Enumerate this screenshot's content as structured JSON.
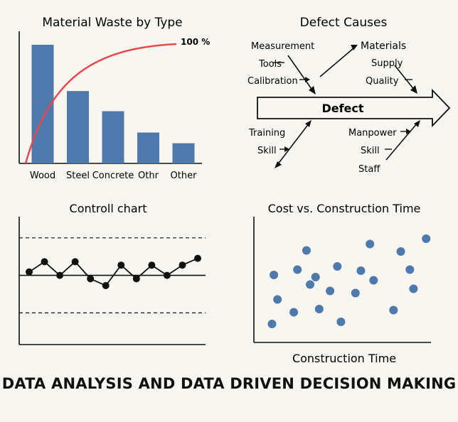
{
  "footer": {
    "title": "DATA ANALYSIS AND DATA DRIVEN DECISION MAKING"
  },
  "colors": {
    "bar": "#4e79ad",
    "pareto": "#e8474d",
    "dot": "#4e79ad",
    "line": "#111111"
  },
  "chart_data": [
    {
      "type": "bar",
      "title": "Material Waste by Type",
      "categories": [
        "Wood",
        "Steel",
        "Concrete",
        "Othr",
        "Other"
      ],
      "values": [
        100,
        61,
        44,
        26,
        17
      ],
      "cumulative_line_label": "100 %",
      "xlabel": "",
      "ylabel": ""
    },
    {
      "type": "diagram",
      "title": "Defect Causes",
      "head": "Defect",
      "branches": [
        {
          "items": [
            "Measurement",
            "Tools",
            "Calibration"
          ]
        },
        {
          "items": [
            "Materials",
            "Supply",
            "Quality"
          ]
        },
        {
          "items": [
            "Training",
            "Skill"
          ]
        },
        {
          "items": [
            "Manpower",
            "Skill",
            "Staff"
          ]
        }
      ]
    },
    {
      "type": "line",
      "title": "Controll chart",
      "values": [
        4,
        7,
        3,
        7,
        2,
        0,
        6,
        2,
        6,
        3,
        6,
        8
      ],
      "center_line": 3,
      "upper_limit": 14,
      "lower_limit": -8
    },
    {
      "type": "scatter",
      "title": "Cost vs. Construction Time",
      "xlabel": "Construction Time",
      "ylabel": "",
      "points": [
        [
          1.0,
          1.0
        ],
        [
          1.3,
          3.3
        ],
        [
          1.1,
          5.6
        ],
        [
          2.2,
          2.1
        ],
        [
          2.4,
          6.1
        ],
        [
          3.1,
          4.7
        ],
        [
          2.9,
          7.9
        ],
        [
          3.6,
          2.4
        ],
        [
          3.4,
          5.4
        ],
        [
          4.2,
          4.1
        ],
        [
          4.6,
          6.4
        ],
        [
          4.8,
          1.2
        ],
        [
          5.6,
          3.9
        ],
        [
          5.9,
          6.0
        ],
        [
          6.4,
          8.5
        ],
        [
          6.6,
          5.1
        ],
        [
          7.7,
          2.3
        ],
        [
          8.1,
          7.8
        ],
        [
          8.6,
          6.1
        ],
        [
          8.8,
          4.3
        ],
        [
          9.5,
          9.0
        ]
      ]
    }
  ]
}
